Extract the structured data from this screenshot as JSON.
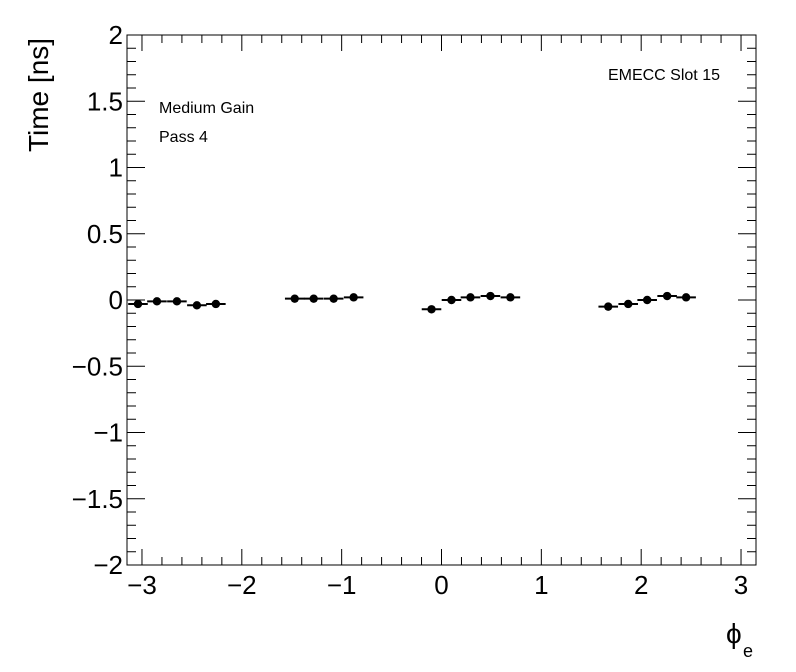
{
  "chart_data": {
    "type": "scatter",
    "xlabel": "ϕ",
    "xlabel_subscript": "e",
    "ylabel": "Time [ns]",
    "xlim": [
      -3.15,
      3.15
    ],
    "ylim": [
      -2,
      2
    ],
    "x_tick_labels": [
      "−3",
      "−2",
      "−1",
      "0",
      "1",
      "2",
      "3"
    ],
    "y_tick_labels": [
      "−2",
      "−1.5",
      "−1",
      "−0.5",
      "0",
      "0.5",
      "1",
      "1.5",
      "2"
    ],
    "grid": false,
    "annotations": {
      "top_right": "EMECC Slot 15",
      "top_left_line1": "Medium Gain",
      "top_left_line2": "Pass 4"
    },
    "x_error_half_width": 0.098,
    "points": [
      {
        "x": -3.04,
        "y": -0.03
      },
      {
        "x": -2.85,
        "y": -0.01
      },
      {
        "x": -2.65,
        "y": -0.01
      },
      {
        "x": -2.45,
        "y": -0.04
      },
      {
        "x": -2.26,
        "y": -0.03
      },
      {
        "x": -1.47,
        "y": 0.01
      },
      {
        "x": -1.28,
        "y": 0.01
      },
      {
        "x": -1.08,
        "y": 0.01
      },
      {
        "x": -0.88,
        "y": 0.02
      },
      {
        "x": -0.1,
        "y": -0.07
      },
      {
        "x": 0.1,
        "y": 0.0
      },
      {
        "x": 0.29,
        "y": 0.02
      },
      {
        "x": 0.49,
        "y": 0.03
      },
      {
        "x": 0.69,
        "y": 0.02
      },
      {
        "x": 1.67,
        "y": -0.05
      },
      {
        "x": 1.87,
        "y": -0.03
      },
      {
        "x": 2.06,
        "y": 0.0
      },
      {
        "x": 2.26,
        "y": 0.03
      },
      {
        "x": 2.45,
        "y": 0.02
      }
    ]
  }
}
